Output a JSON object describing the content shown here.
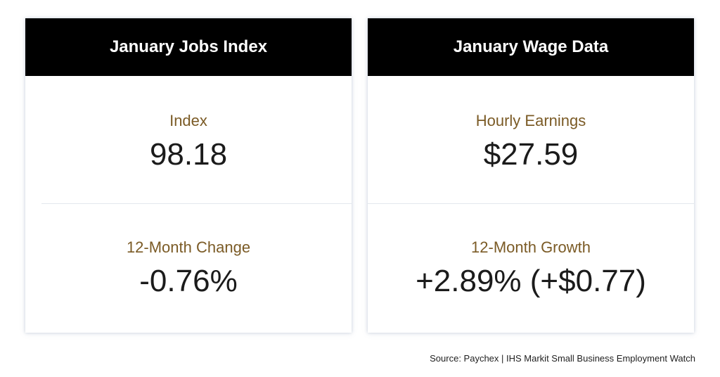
{
  "cards": [
    {
      "title": "January Jobs Index",
      "top_label": "Index",
      "top_value": "98.18",
      "bottom_label": "12-Month Change",
      "bottom_value": "-0.76%"
    },
    {
      "title": "January Wage Data",
      "top_label": "Hourly Earnings",
      "top_value": "$27.59",
      "bottom_label": "12-Month Growth",
      "bottom_value": "+2.89% (+$0.77)"
    }
  ],
  "source": "Source: Paychex | IHS Markit Small Business Employment Watch",
  "colors": {
    "header_bg": "#000000",
    "header_text": "#ffffff",
    "label_text": "#7b5b26",
    "value_text": "#1b1b1b"
  }
}
